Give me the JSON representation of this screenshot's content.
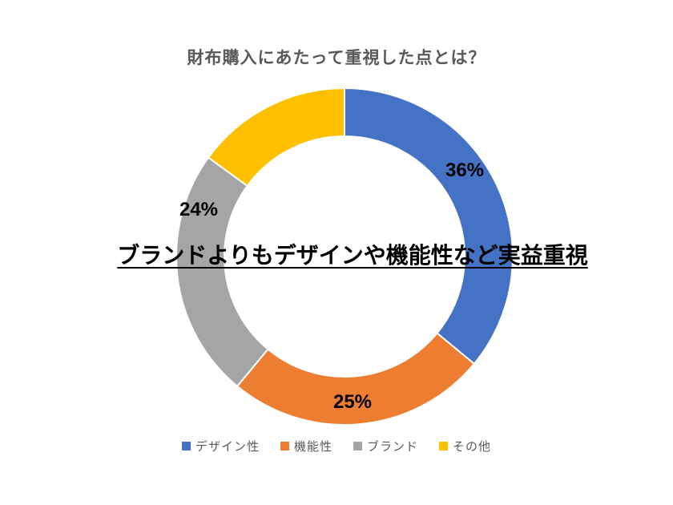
{
  "chart_data": {
    "type": "pie",
    "subtype": "donut",
    "title": "財布購入にあたって重視した点とは？",
    "units": "%",
    "start_angle_deg": 0,
    "direction": "clockwise",
    "inner_radius_ratio": 0.71,
    "legend_position": "bottom",
    "gridlines": false,
    "annotation": "ブランドよりもデザインや機能性など実益重視",
    "segments": [
      {
        "name": "デザイン性",
        "value": 36,
        "label": "36%",
        "color": "#4472C4"
      },
      {
        "name": "機能性",
        "value": 25,
        "label": "25%",
        "color": "#ED7D31"
      },
      {
        "name": "ブランド",
        "value": 24,
        "label": "24%",
        "color": "#A5A5A5"
      },
      {
        "name": "その他",
        "value": 15,
        "label": "",
        "color": "#FFC000"
      }
    ]
  },
  "colors": {
    "background": "#FFFFFF",
    "title_text": "#595959",
    "legend_text": "#595959",
    "data_label_text": "#000000",
    "annotation_text": "#000000",
    "segment_gap": "#FFFFFF"
  }
}
